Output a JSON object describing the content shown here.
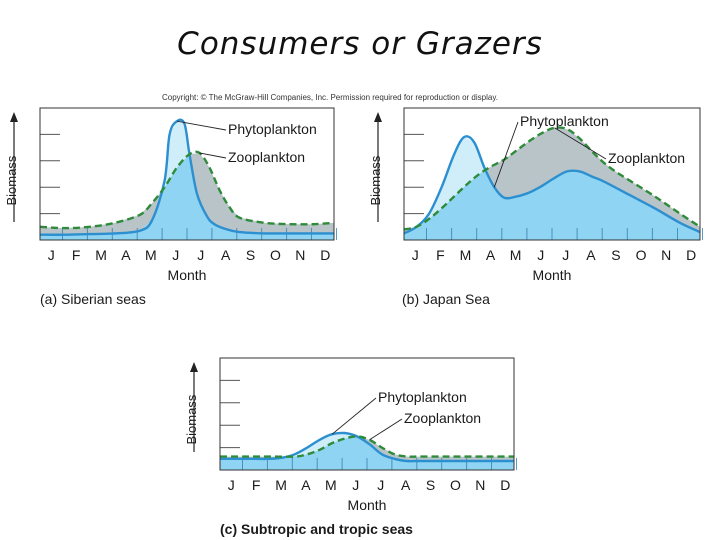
{
  "slide": {
    "title": "Consumers or Grazers",
    "copyright": "Copyright: © The McGraw-Hill Companies, Inc. Permission required for reproduction or display."
  },
  "colors": {
    "phyto_line": "#2b8fd0",
    "phyto_fill": "#cfeefa",
    "zoo_line": "#2e8b3a",
    "zoo_fill": "#8fd4f2",
    "surplus_fill": "#b9c4c9",
    "axis": "#333333"
  },
  "chart_data": [
    {
      "type": "line",
      "caption": "(a) Siberian seas",
      "xlabel": "Month",
      "ylabel": "Biomass",
      "categories": [
        "J",
        "F",
        "M",
        "A",
        "M",
        "J",
        "J",
        "A",
        "S",
        "O",
        "N",
        "D"
      ],
      "ylim": [
        0,
        1
      ],
      "series": [
        {
          "name": "Phytoplankton",
          "x": [
            0,
            1,
            2,
            3,
            4,
            4.5,
            5,
            5.2,
            5.5,
            5.8,
            6,
            6.3,
            6.7,
            7,
            7.5,
            8,
            9,
            10,
            11,
            11.8
          ],
          "values": [
            0.04,
            0.04,
            0.045,
            0.05,
            0.07,
            0.15,
            0.45,
            0.8,
            0.9,
            0.88,
            0.65,
            0.35,
            0.18,
            0.12,
            0.08,
            0.06,
            0.05,
            0.05,
            0.05,
            0.05
          ]
        },
        {
          "name": "Zooplankton",
          "x": [
            0,
            1,
            2,
            3,
            4,
            4.5,
            5,
            5.5,
            6,
            6.4,
            6.8,
            7.2,
            7.6,
            8,
            9,
            10,
            11,
            11.8
          ],
          "values": [
            0.1,
            0.09,
            0.1,
            0.13,
            0.19,
            0.28,
            0.4,
            0.55,
            0.65,
            0.66,
            0.55,
            0.38,
            0.25,
            0.17,
            0.13,
            0.12,
            0.12,
            0.13
          ]
        }
      ]
    },
    {
      "type": "line",
      "caption": "(b) Japan Sea",
      "xlabel": "Month",
      "ylabel": "Biomass",
      "categories": [
        "J",
        "F",
        "M",
        "A",
        "M",
        "J",
        "J",
        "A",
        "S",
        "O",
        "N",
        "D"
      ],
      "ylim": [
        0,
        1
      ],
      "series": [
        {
          "name": "Phytoplankton",
          "x": [
            0,
            0.5,
            1,
            1.5,
            2,
            2.4,
            2.8,
            3.2,
            3.6,
            4,
            4.5,
            5,
            5.5,
            6,
            6.5,
            7,
            7.5,
            8,
            9,
            10,
            11,
            11.8
          ],
          "values": [
            0.05,
            0.1,
            0.2,
            0.4,
            0.65,
            0.78,
            0.74,
            0.55,
            0.4,
            0.32,
            0.33,
            0.36,
            0.41,
            0.47,
            0.52,
            0.52,
            0.48,
            0.44,
            0.34,
            0.24,
            0.13,
            0.06
          ]
        },
        {
          "name": "Zooplankton",
          "x": [
            0,
            0.5,
            1,
            1.5,
            2,
            2.5,
            3,
            3.5,
            4,
            4.5,
            5,
            5.5,
            6,
            6.5,
            7,
            7.5,
            8,
            8.5,
            9,
            10,
            11,
            11.8
          ],
          "values": [
            0.08,
            0.1,
            0.16,
            0.24,
            0.33,
            0.42,
            0.5,
            0.56,
            0.61,
            0.68,
            0.75,
            0.81,
            0.85,
            0.84,
            0.77,
            0.67,
            0.58,
            0.51,
            0.45,
            0.33,
            0.2,
            0.1
          ]
        }
      ]
    },
    {
      "type": "line",
      "caption": "(c) Subtropic and tropic seas",
      "xlabel": "Month",
      "ylabel": "Biomass",
      "categories": [
        "J",
        "F",
        "M",
        "A",
        "M",
        "J",
        "J",
        "A",
        "S",
        "O",
        "N",
        "D"
      ],
      "ylim": [
        0,
        1
      ],
      "series": [
        {
          "name": "Phytoplankton",
          "x": [
            0,
            1,
            2,
            2.5,
            3,
            3.5,
            4,
            4.5,
            5,
            5.5,
            6,
            6.5,
            7,
            7.5,
            8,
            9,
            10,
            11,
            11.8
          ],
          "values": [
            0.1,
            0.1,
            0.1,
            0.11,
            0.14,
            0.2,
            0.27,
            0.32,
            0.33,
            0.3,
            0.23,
            0.14,
            0.1,
            0.08,
            0.08,
            0.08,
            0.08,
            0.08,
            0.08
          ]
        },
        {
          "name": "Zooplankton",
          "x": [
            0,
            1,
            2,
            3,
            3.5,
            4,
            4.5,
            5,
            5.5,
            6,
            6.5,
            7,
            7.5,
            8,
            9,
            10,
            11,
            11.8
          ],
          "values": [
            0.12,
            0.12,
            0.12,
            0.12,
            0.14,
            0.18,
            0.24,
            0.28,
            0.3,
            0.27,
            0.2,
            0.14,
            0.12,
            0.12,
            0.12,
            0.12,
            0.12,
            0.12
          ]
        }
      ]
    }
  ]
}
